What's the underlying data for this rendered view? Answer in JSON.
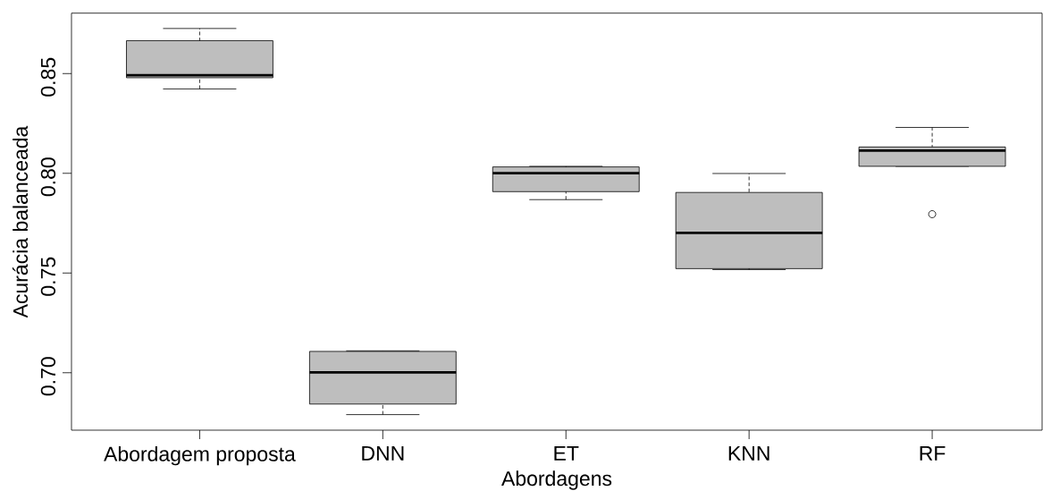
{
  "chart_data": {
    "type": "box",
    "xlabel": "Abordagens",
    "ylabel": "Acurácia balanceada",
    "categories": [
      "Abordagem proposta",
      "DNN",
      "ET",
      "KNN",
      "RF"
    ],
    "color": "#bebebe",
    "boxes": [
      {
        "low": 0.8423,
        "q1": 0.8479,
        "median": 0.8492,
        "q3": 0.8665,
        "high": 0.8726
      },
      {
        "low": 0.679,
        "q1": 0.6843,
        "median": 0.7002,
        "q3": 0.7107,
        "high": 0.711
      },
      {
        "low": 0.7868,
        "q1": 0.7908,
        "median": 0.8001,
        "q3": 0.8032,
        "high": 0.8035
      },
      {
        "low": 0.7517,
        "q1": 0.7522,
        "median": 0.7701,
        "q3": 0.7904,
        "high": 0.7999
      },
      {
        "low": 0.8035,
        "q1": 0.8035,
        "median": 0.8114,
        "q3": 0.8132,
        "high": 0.823,
        "outliers": [
          0.7795
        ]
      }
    ],
    "ylim": [
      0.6712,
      0.8803
    ],
    "yticks": [
      {
        "value": 0.7,
        "label": "0.70"
      },
      {
        "value": 0.75,
        "label": "0.75"
      },
      {
        "value": 0.8,
        "label": "0.80"
      },
      {
        "value": 0.85,
        "label": "0.85"
      }
    ]
  }
}
